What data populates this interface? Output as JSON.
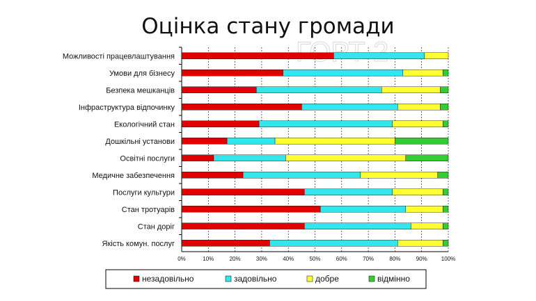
{
  "title": "Оцінка стану громади",
  "watermark": "ГОРТ 2",
  "colors": {
    "series": [
      "#e00000",
      "#33e6ec",
      "#ffff33",
      "#33cc33"
    ]
  },
  "chart_data": {
    "type": "bar",
    "orientation": "horizontal",
    "stacked": "percent",
    "title": "Оцінка стану громади",
    "categories": [
      "Можливості працевлаштування",
      "Умови для бізнесу",
      "Безпека мешканців",
      "Інфраструктура відпочинку",
      "Екологічний стан",
      "Дошкільні установи",
      "Освітні послуги",
      "Медичне забезпечення",
      "Послуги культури",
      "Стан тротуарів",
      "Стан доріг",
      "Якість комун. послуг"
    ],
    "series": [
      {
        "name": "незадовільно",
        "values": [
          57,
          38,
          28,
          45,
          29,
          17,
          12,
          23,
          46,
          52,
          46,
          33
        ]
      },
      {
        "name": "задовільно",
        "values": [
          34,
          45,
          47,
          36,
          50,
          18,
          27,
          44,
          33,
          32,
          40,
          48
        ]
      },
      {
        "name": "добре",
        "values": [
          9,
          15,
          22,
          16,
          19,
          45,
          45,
          29,
          19,
          14,
          12,
          17
        ]
      },
      {
        "name": "відмінно",
        "values": [
          0,
          2,
          3,
          3,
          2,
          20,
          16,
          4,
          2,
          2,
          2,
          2
        ]
      }
    ],
    "xlim": [
      0,
      100
    ],
    "x_ticks": [
      "0%",
      "10%",
      "20%",
      "30%",
      "40%",
      "50%",
      "60%",
      "70%",
      "80%",
      "90%",
      "100%"
    ],
    "grid": "vertical dashed",
    "legend_position": "bottom"
  }
}
